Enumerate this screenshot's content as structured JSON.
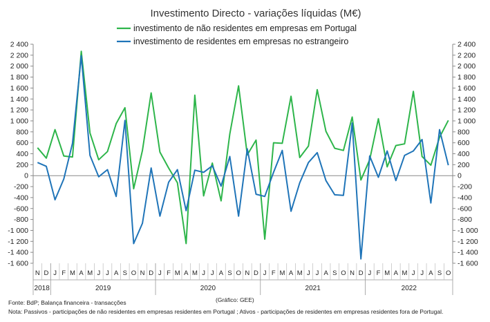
{
  "chart_data": {
    "type": "line",
    "title": "Investimento Directo - variações líquidas (M€)",
    "ylim": [
      -1600,
      2400
    ],
    "yticks": [
      -1600,
      -1400,
      -1200,
      -1000,
      -800,
      -600,
      -400,
      -200,
      0,
      200,
      400,
      600,
      800,
      1000,
      1200,
      1400,
      1600,
      1800,
      2000,
      2200,
      2400
    ],
    "ytick_labels": [
      "-1 600",
      "-1 400",
      "-1 200",
      "-1 000",
      "-800",
      "-600",
      "-400",
      "-200",
      "0",
      "200",
      "400",
      "600",
      "800",
      "1 000",
      "1 200",
      "1 400",
      "1 600",
      "1 800",
      "2 000",
      "2 200",
      "2 400"
    ],
    "legend_position": "top",
    "grid": false,
    "secondary_y_axis": true,
    "months": [
      "N",
      "D",
      "J",
      "F",
      "M",
      "A",
      "M",
      "J",
      "J",
      "A",
      "S",
      "O",
      "N",
      "D",
      "J",
      "F",
      "M",
      "A",
      "M",
      "J",
      "J",
      "A",
      "S",
      "O",
      "N",
      "D",
      "J",
      "F",
      "M",
      "A",
      "M",
      "J",
      "J",
      "A",
      "S",
      "O",
      "N",
      "D",
      "J",
      "F",
      "M",
      "A",
      "M",
      "J",
      "J",
      "A",
      "S",
      "O"
    ],
    "years": [
      {
        "label": "2018",
        "start": 0,
        "end": 1
      },
      {
        "label": "2019",
        "start": 2,
        "end": 13
      },
      {
        "label": "2020",
        "start": 14,
        "end": 25
      },
      {
        "label": "2021",
        "start": 26,
        "end": 37
      },
      {
        "label": "2022",
        "start": 38,
        "end": 47
      }
    ],
    "series": [
      {
        "name": "investimento de não residentes em empresas em Portugal",
        "color": "#2db54a",
        "values": [
          510,
          320,
          840,
          360,
          340,
          2270,
          780,
          290,
          440,
          950,
          1240,
          -240,
          460,
          1510,
          430,
          140,
          -130,
          -1240,
          1470,
          -370,
          230,
          -460,
          760,
          1640,
          380,
          650,
          -1160,
          600,
          590,
          1450,
          330,
          540,
          1570,
          810,
          500,
          460,
          1070,
          -80,
          290,
          1040,
          160,
          550,
          580,
          1540,
          350,
          190,
          700,
          1010
        ]
      },
      {
        "name": "investimento de residentes em empresas no estrangeiro",
        "color": "#1f74b8",
        "values": [
          240,
          170,
          -440,
          -60,
          590,
          2190,
          370,
          -20,
          110,
          -380,
          1010,
          -1240,
          -870,
          140,
          -740,
          -120,
          110,
          -640,
          100,
          60,
          180,
          -190,
          350,
          -740,
          490,
          -340,
          -380,
          60,
          460,
          -650,
          -130,
          240,
          420,
          -90,
          -350,
          -360,
          960,
          -1520,
          360,
          -30,
          450,
          -90,
          370,
          450,
          660,
          -500,
          840,
          190
        ]
      }
    ],
    "notes": {
      "source": "Fonte: BdP; Balança financeira - transacções",
      "credit": "(Gráfico: GEE)",
      "note": "Nota: Passivos - participações de não residentes em empresas residentes em Portugal ; Ativos - participações de residentes em empresas residentes fora de Portugal."
    }
  }
}
